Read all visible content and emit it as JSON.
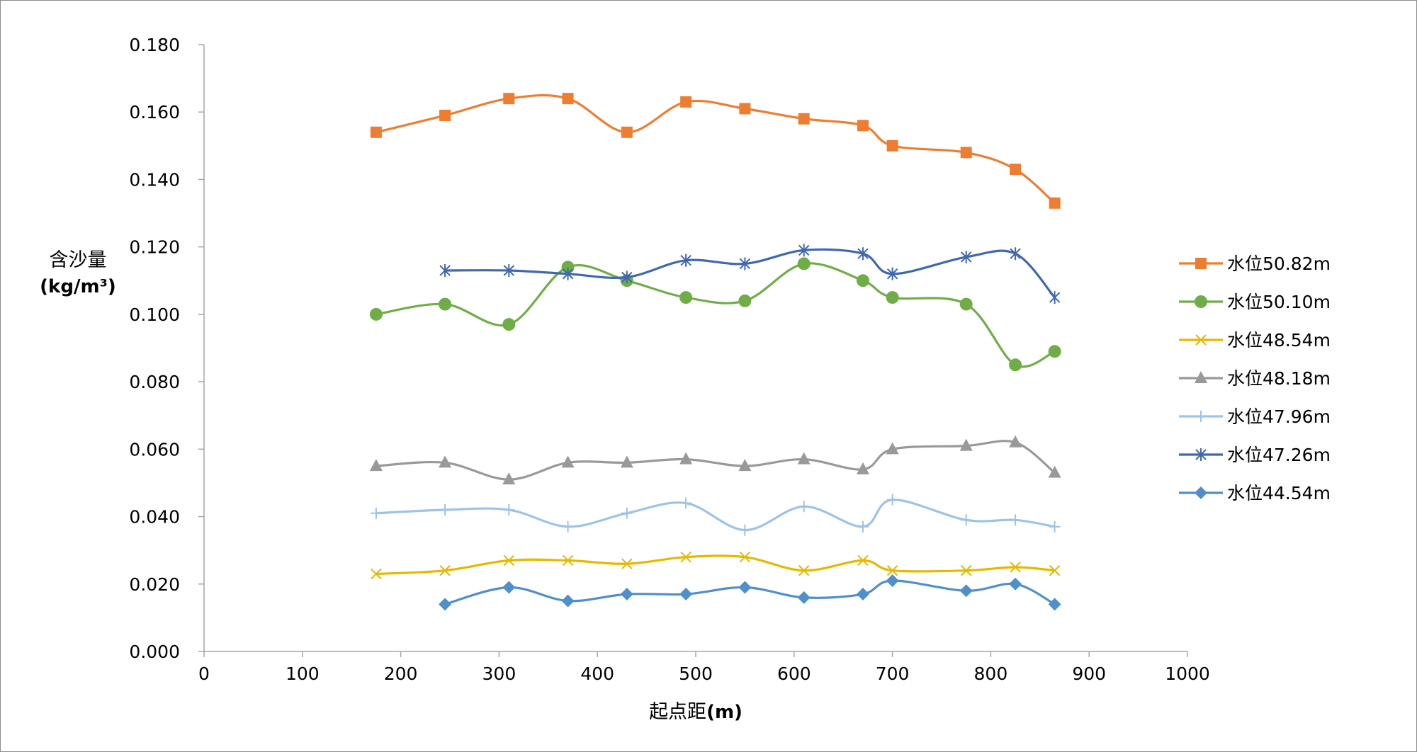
{
  "chart_data": {
    "type": "line",
    "xlabel_main": "起点距",
    "xlabel_unit": "(m)",
    "ylabel_line1": "含沙量",
    "ylabel_line2": "(kg/m³)",
    "xlim": [
      0,
      1000
    ],
    "ylim": [
      0,
      0.18
    ],
    "x_ticks": [
      "0",
      "100",
      "200",
      "300",
      "400",
      "500",
      "600",
      "700",
      "800",
      "900",
      "1000"
    ],
    "y_ticks": [
      "0.000",
      "0.020",
      "0.040",
      "0.060",
      "0.080",
      "0.100",
      "0.120",
      "0.140",
      "0.160",
      "0.180"
    ],
    "grid": false,
    "legend_position": "right",
    "series": [
      {
        "name": "水位50.82m",
        "color": "#ED7D31",
        "marker": "square",
        "x": [
          175,
          245,
          310,
          370,
          430,
          490,
          550,
          610,
          670,
          700,
          775,
          825,
          865
        ],
        "y": [
          0.154,
          0.159,
          0.164,
          0.164,
          0.154,
          0.163,
          0.161,
          0.158,
          0.156,
          0.15,
          0.148,
          0.143,
          0.133
        ]
      },
      {
        "name": "水位50.10m",
        "color": "#70AD47",
        "marker": "circle",
        "x": [
          175,
          245,
          310,
          370,
          430,
          490,
          550,
          610,
          670,
          700,
          775,
          825,
          865
        ],
        "y": [
          0.1,
          0.103,
          0.097,
          0.114,
          0.11,
          0.105,
          0.104,
          0.115,
          0.11,
          0.105,
          0.103,
          0.085,
          0.089
        ]
      },
      {
        "name": "水位48.54m",
        "color": "#E6B800",
        "marker": "x",
        "x": [
          175,
          245,
          310,
          370,
          430,
          490,
          550,
          610,
          670,
          700,
          775,
          825,
          865
        ],
        "y": [
          0.023,
          0.024,
          0.027,
          0.027,
          0.026,
          0.028,
          0.028,
          0.024,
          0.027,
          0.024,
          0.024,
          0.025,
          0.024
        ]
      },
      {
        "name": "水位48.18m",
        "color": "#999999",
        "marker": "triangle",
        "x": [
          175,
          245,
          310,
          370,
          430,
          490,
          550,
          610,
          670,
          700,
          775,
          825,
          865
        ],
        "y": [
          0.055,
          0.056,
          0.051,
          0.056,
          0.056,
          0.057,
          0.055,
          0.057,
          0.054,
          0.06,
          0.061,
          0.062,
          0.053
        ]
      },
      {
        "name": "水位47.96m",
        "color": "#9DC3E6",
        "marker": "plus",
        "x": [
          175,
          245,
          310,
          370,
          430,
          490,
          550,
          610,
          670,
          700,
          775,
          825,
          865
        ],
        "y": [
          0.041,
          0.042,
          0.042,
          0.037,
          0.041,
          0.044,
          0.036,
          0.043,
          0.037,
          0.045,
          0.039,
          0.039,
          0.037
        ]
      },
      {
        "name": "水位47.26m",
        "color": "#3F68AF",
        "marker": "star",
        "x": [
          245,
          310,
          370,
          430,
          490,
          550,
          610,
          670,
          700,
          775,
          825,
          865
        ],
        "y": [
          0.113,
          0.113,
          0.112,
          0.111,
          0.116,
          0.115,
          0.119,
          0.118,
          0.112,
          0.117,
          0.118,
          0.105
        ]
      },
      {
        "name": "水位44.54m",
        "color": "#4F8FCB",
        "marker": "diamond",
        "x": [
          245,
          310,
          370,
          430,
          490,
          550,
          610,
          670,
          700,
          775,
          825,
          865
        ],
        "y": [
          0.014,
          0.019,
          0.015,
          0.017,
          0.017,
          0.019,
          0.016,
          0.017,
          0.021,
          0.018,
          0.02,
          0.014
        ]
      }
    ]
  }
}
